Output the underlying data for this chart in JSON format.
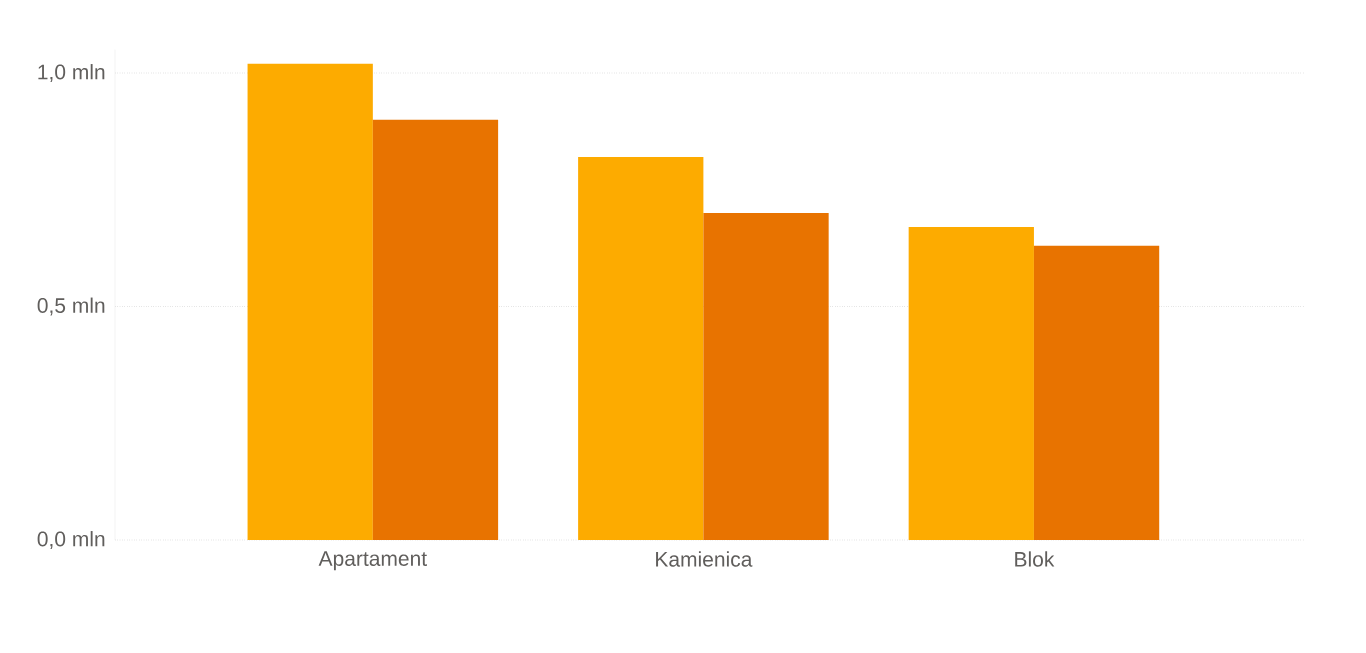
{
  "chart_data": {
    "type": "bar",
    "categories": [
      "Apartament",
      "Kamienica",
      "Blok"
    ],
    "series": [
      {
        "color": "#fdab00",
        "values": [
          1.02,
          0.82,
          0.67
        ]
      },
      {
        "color": "#e87300",
        "values": [
          0.9,
          0.7,
          0.63
        ]
      }
    ],
    "ylim": [
      0,
      1.05
    ],
    "yticks": [
      {
        "value": 0,
        "label": "0,0 mln"
      },
      {
        "value": 0.5,
        "label": "0,5 mln"
      },
      {
        "value": 1,
        "label": "1,0 mln"
      }
    ],
    "grid": "y"
  }
}
